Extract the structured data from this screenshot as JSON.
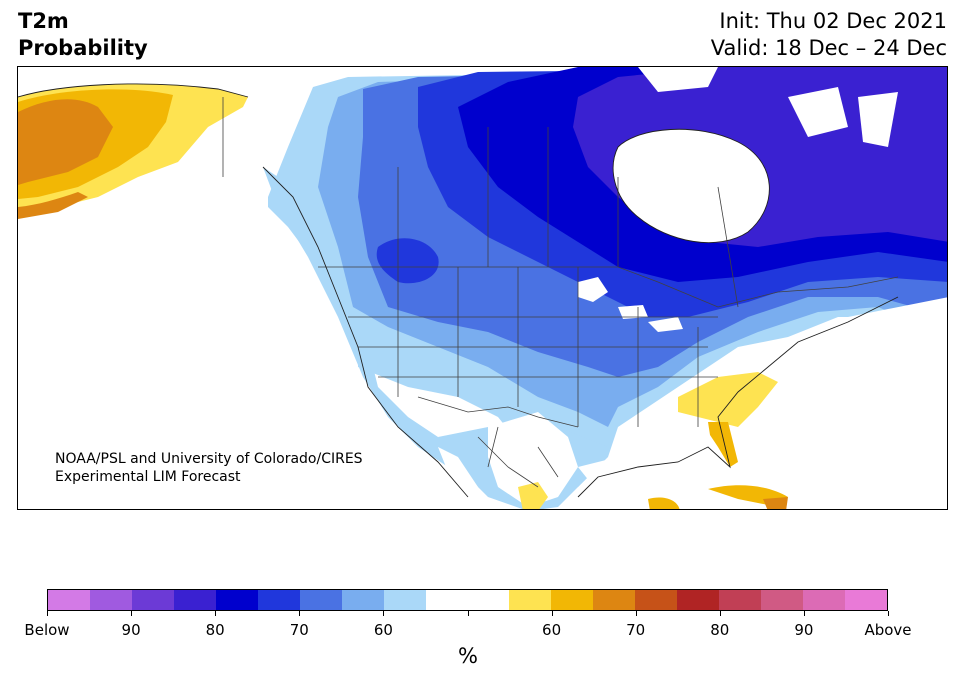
{
  "header": {
    "title_line1": "T2m",
    "title_line2": "Probability",
    "init": "Init: Thu 02 Dec 2021",
    "valid": "Valid: 18 Dec – 24 Dec"
  },
  "credit": {
    "line1": "NOAA/PSL and University of Colorado/CIRES",
    "line2": "Experimental LIM Forecast"
  },
  "colorbar": {
    "label": "%",
    "colors": [
      "#d37ae6",
      "#a05ae0",
      "#6c3ad6",
      "#3a21d1",
      "#0000cd",
      "#2037dc",
      "#4a72e3",
      "#79adef",
      "#aad8f8",
      "#ffffff",
      "#ffffff",
      "#fee351",
      "#f2b705",
      "#dd8612",
      "#c65218",
      "#b02424",
      "#c13f55",
      "#d05a84",
      "#dc6bb5",
      "#e97ad7"
    ],
    "ticks": [
      "Below",
      "90",
      "80",
      "70",
      "60",
      "",
      "60",
      "70",
      "80",
      "90",
      "Above"
    ]
  },
  "map_colors": {
    "ocean": "#ffffff",
    "below_60": "#aad8f8",
    "below_70": "#79adef",
    "below_75": "#4a72e3",
    "below_80": "#2037dc",
    "below_85": "#0000cd",
    "below_90": "#3a21d1",
    "above_60": "#fee351",
    "above_65": "#f2b705",
    "above_70": "#dd8612"
  }
}
